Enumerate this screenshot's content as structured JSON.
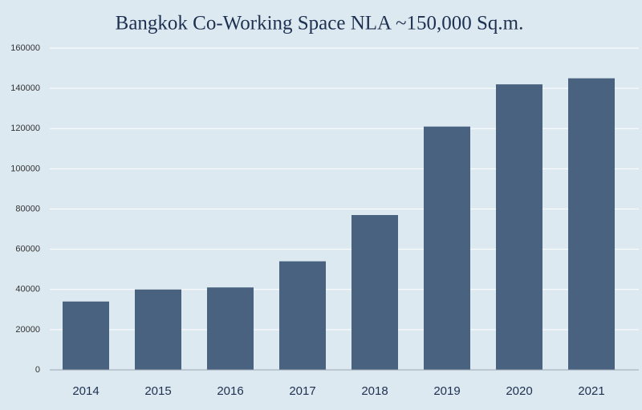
{
  "chart_data": {
    "type": "bar",
    "title": "Bangkok Co-Working Space NLA ~150,000 Sq.m.",
    "categories": [
      "2014",
      "2015",
      "2016",
      "2017",
      "2018",
      "2019",
      "2020",
      "2021"
    ],
    "values": [
      34000,
      40000,
      41000,
      54000,
      77000,
      121000,
      142000,
      145000
    ],
    "color": "#48627f",
    "ylim": [
      0,
      160000
    ],
    "yticks": [
      0,
      20000,
      40000,
      60000,
      80000,
      100000,
      120000,
      140000,
      160000
    ],
    "grid": true
  }
}
